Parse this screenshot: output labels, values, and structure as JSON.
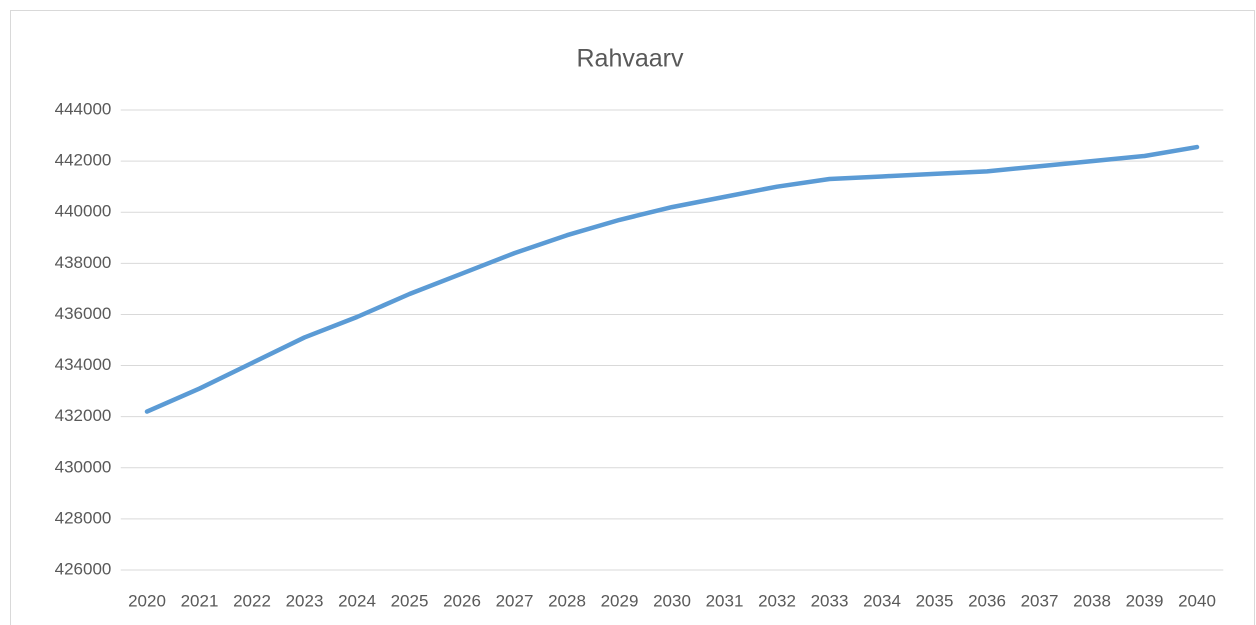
{
  "chart_data": {
    "type": "line",
    "title": "Rahvaarv",
    "categories": [
      "2020",
      "2021",
      "2022",
      "2023",
      "2024",
      "2025",
      "2026",
      "2027",
      "2028",
      "2029",
      "2030",
      "2031",
      "2032",
      "2033",
      "2034",
      "2035",
      "2036",
      "2037",
      "2038",
      "2039",
      "2040"
    ],
    "series": [
      {
        "name": "Rahvaarv",
        "color": "#5b9bd5",
        "values": [
          432200,
          433100,
          434100,
          435100,
          435900,
          436800,
          437600,
          438400,
          439100,
          439700,
          440200,
          440600,
          441000,
          441300,
          441400,
          441500,
          441600,
          441800,
          442000,
          442200,
          442550
        ]
      }
    ],
    "ylim": [
      426000,
      444000
    ],
    "yticks": [
      426000,
      428000,
      430000,
      432000,
      434000,
      436000,
      438000,
      440000,
      442000,
      444000
    ],
    "grid": true
  }
}
